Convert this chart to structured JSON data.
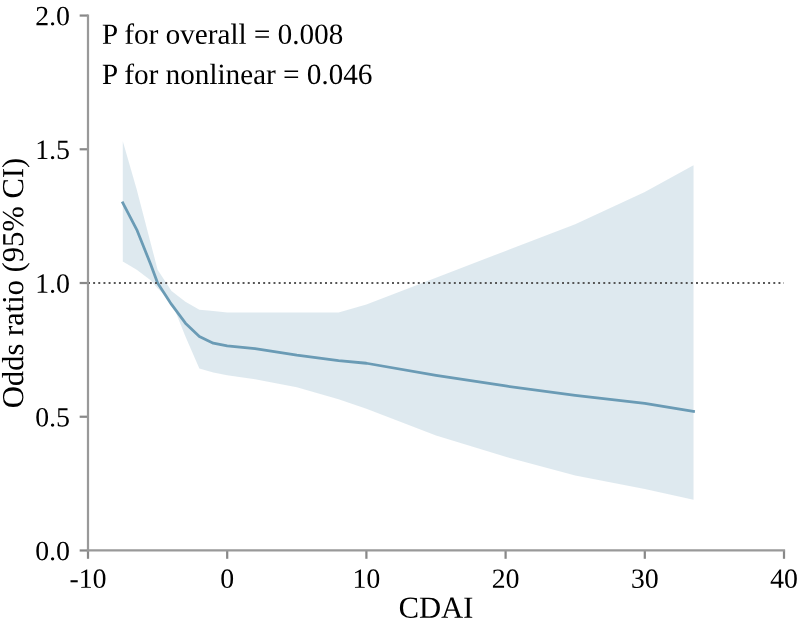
{
  "chart_data": {
    "type": "line",
    "xlabel": "CDAI",
    "ylabel": "Odds ratio (95% CI)",
    "annotations": [
      "P for overall = 0.008",
      "P for nonlinear = 0.046"
    ],
    "series": [
      {
        "color": "#6a9bb5",
        "x": [
          -7.5,
          -6.5,
          -5.5,
          -5,
          -4,
          -3,
          -2,
          -1,
          0,
          2,
          5,
          8,
          10,
          15,
          20,
          25,
          30,
          33.5
        ],
        "values": [
          1.3,
          1.2,
          1.07,
          1.0,
          0.92,
          0.85,
          0.8,
          0.775,
          0.765,
          0.755,
          0.73,
          0.71,
          0.7,
          0.655,
          0.615,
          0.58,
          0.55,
          0.52
        ],
        "lower": [
          1.08,
          1.05,
          1.01,
          0.98,
          0.93,
          0.8,
          0.68,
          0.665,
          0.655,
          0.64,
          0.61,
          0.565,
          0.53,
          0.43,
          0.35,
          0.28,
          0.23,
          0.19
        ],
        "upper": [
          1.53,
          1.35,
          1.15,
          1.05,
          0.97,
          0.93,
          0.9,
          0.895,
          0.89,
          0.89,
          0.89,
          0.89,
          0.92,
          1.02,
          1.12,
          1.22,
          1.34,
          1.44
        ]
      }
    ],
    "xlim": [
      -10,
      40
    ],
    "xticks": [
      -10,
      0,
      10,
      20,
      30,
      40
    ],
    "ylim": [
      0,
      2
    ],
    "yticks": [
      {
        "value": 0,
        "label": "0.0"
      },
      {
        "value": 0.5,
        "label": "0.5"
      },
      {
        "value": 1,
        "label": "1.0"
      },
      {
        "value": 1.5,
        "label": "1.5"
      },
      {
        "value": 2,
        "label": "2.0"
      }
    ],
    "ref_lines": [
      {
        "axis": "y",
        "value": 1,
        "color": "#555555",
        "line_style": "dotted"
      }
    ],
    "grid": false,
    "legend": false
  }
}
